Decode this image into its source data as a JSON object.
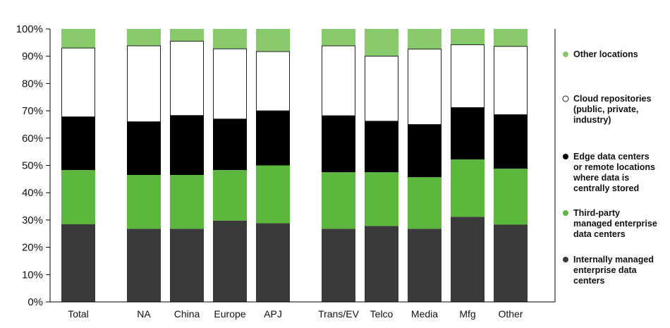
{
  "chart_data": {
    "type": "bar",
    "stacked": true,
    "title": "",
    "xlabel": "",
    "ylabel": "",
    "ylim": [
      0,
      100
    ],
    "y_ticks": [
      "0%",
      "10%",
      "20%",
      "30%",
      "40%",
      "50%",
      "60%",
      "70%",
      "80%",
      "90%",
      "100%"
    ],
    "grid": false,
    "legend_position": "right",
    "categories": [
      "Total",
      "NA",
      "China",
      "Europe",
      "APJ",
      "Trans/EV",
      "Telco",
      "Media",
      "Mfg",
      "Other"
    ],
    "groups": [
      [
        "Total"
      ],
      [
        "NA",
        "China",
        "Europe",
        "APJ"
      ],
      [
        "Trans/EV",
        "Telco",
        "Media",
        "Mfg",
        "Other"
      ]
    ],
    "series": [
      {
        "name": "Internally managed enterprise data centers",
        "color": "#3a3a3a",
        "values": [
          28.5,
          26.8,
          26.8,
          29.8,
          28.8,
          26.8,
          27.8,
          26.8,
          31.2,
          28.3
        ]
      },
      {
        "name": "Third-party managed enterprise data centers",
        "color": "#5bb83c",
        "values": [
          19.8,
          19.7,
          19.7,
          18.5,
          21.2,
          20.7,
          19.7,
          18.9,
          21.0,
          20.5
        ]
      },
      {
        "name": "Edge data centers or remote locations where data is centrally stored",
        "color": "#000000",
        "values": [
          19.5,
          19.5,
          21.8,
          18.7,
          20.0,
          20.7,
          18.7,
          19.3,
          19.0,
          19.8
        ]
      },
      {
        "name": "Cloud repositories (public, private, industry)",
        "color": "#ffffff",
        "values": [
          25.2,
          27.8,
          27.2,
          25.7,
          21.7,
          25.6,
          23.8,
          27.6,
          23.0,
          25.0
        ]
      },
      {
        "name": "Other locations",
        "color": "#88c96b",
        "values": [
          7.0,
          6.2,
          4.5,
          7.3,
          8.3,
          6.2,
          10.0,
          7.4,
          5.8,
          6.4
        ]
      }
    ],
    "legend": [
      {
        "lines": [
          "Other locations"
        ],
        "color": "#88c96b",
        "hollow": false
      },
      {
        "lines": [
          "Cloud repositories",
          "(public, private,",
          "industry)"
        ],
        "color": "#ffffff",
        "hollow": true
      },
      {
        "lines": [
          "Edge data centers",
          "or remote locations",
          "where data is",
          "centrally stored"
        ],
        "color": "#000000",
        "hollow": false
      },
      {
        "lines": [
          "Third-party",
          "managed enterprise",
          "data centers"
        ],
        "color": "#5bb83c",
        "hollow": false
      },
      {
        "lines": [
          "Internally managed",
          "enterprise data",
          "centers"
        ],
        "color": "#3a3a3a",
        "hollow": false
      }
    ]
  }
}
